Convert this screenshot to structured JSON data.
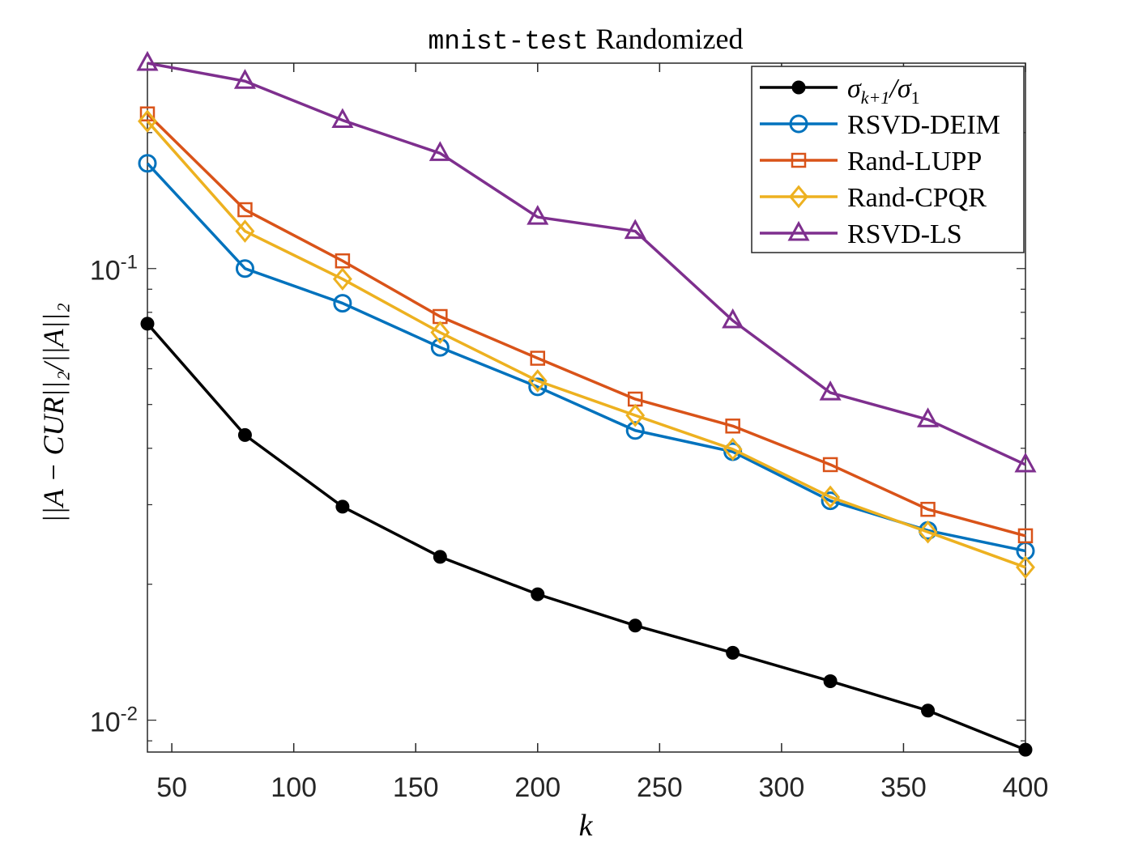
{
  "chart_data": {
    "type": "line",
    "title_code": "mnist-test",
    "title_text": " Randomized",
    "xlabel": "k",
    "ylabel": "||A − CUR||₂/||A||₂",
    "yscale": "log",
    "xlim": [
      40,
      400
    ],
    "ylim": [
      0.0085,
      0.285
    ],
    "xticks": [
      50,
      100,
      150,
      200,
      250,
      300,
      350,
      400
    ],
    "yticks": [
      {
        "value": 0.01,
        "base": "10",
        "exp": "-2"
      },
      {
        "value": 0.1,
        "base": "10",
        "exp": "-1"
      }
    ],
    "grid": false,
    "legend_position": "top-right",
    "x": [
      40,
      80,
      120,
      160,
      200,
      240,
      280,
      320,
      360,
      400
    ],
    "series": [
      {
        "name": "σk+1/σ1",
        "legend": {
          "main": "σ",
          "sub": "k+1",
          "mid": "/σ",
          "sub2": "1"
        },
        "color": "#000000",
        "marker": "dot",
        "values": [
          0.0755,
          0.0428,
          0.0297,
          0.023,
          0.019,
          0.0162,
          0.0141,
          0.0122,
          0.0105,
          0.0086
        ]
      },
      {
        "name": "RSVD-DEIM",
        "color": "#0072BD",
        "marker": "circle",
        "values": [
          0.171,
          0.1,
          0.0838,
          0.0669,
          0.0547,
          0.0438,
          0.0393,
          0.0306,
          0.0263,
          0.0237
        ]
      },
      {
        "name": "Rand-LUPP",
        "color": "#D95319",
        "marker": "square",
        "values": [
          0.22,
          0.135,
          0.104,
          0.0783,
          0.0633,
          0.0514,
          0.0448,
          0.0368,
          0.0293,
          0.0256
        ]
      },
      {
        "name": "Rand-CPQR",
        "color": "#EDB120",
        "marker": "diamond",
        "values": [
          0.212,
          0.121,
          0.0948,
          0.0722,
          0.0564,
          0.0473,
          0.0398,
          0.0312,
          0.0261,
          0.0218
        ]
      },
      {
        "name": "RSVD-LS",
        "color": "#7E2F8E",
        "marker": "triangle",
        "values": [
          0.285,
          0.26,
          0.213,
          0.18,
          0.13,
          0.121,
          0.0767,
          0.0531,
          0.0463,
          0.0368
        ]
      }
    ]
  }
}
